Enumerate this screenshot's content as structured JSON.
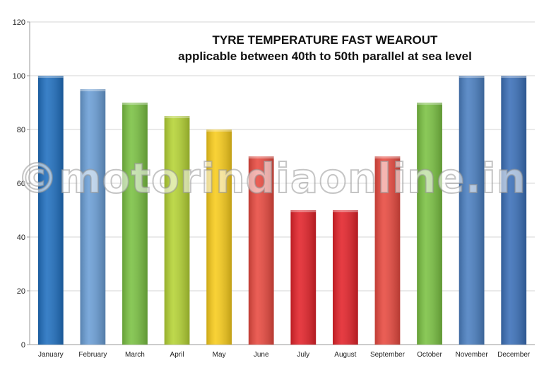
{
  "chart_data": {
    "type": "bar",
    "title": "TYRE TEMPERATURE FAST WEAROUT",
    "subtitle": "applicable between 40th to 50th parallel at sea level",
    "categories": [
      "January",
      "February",
      "March",
      "April",
      "May",
      "June",
      "July",
      "August",
      "September",
      "October",
      "November",
      "December"
    ],
    "values": [
      100,
      95,
      90,
      85,
      80,
      70,
      50,
      50,
      70,
      90,
      100,
      100
    ],
    "colors": [
      "#1f6fbf",
      "#6a9ed6",
      "#7ac142",
      "#b5d334",
      "#f8cc1b",
      "#e8493f",
      "#e32229",
      "#e32229",
      "#e8493f",
      "#7ac142",
      "#4a7fc1",
      "#3a6fb8"
    ],
    "ylim": [
      0,
      120
    ],
    "yticks": [
      0,
      20,
      40,
      60,
      80,
      100,
      120
    ],
    "grid": true,
    "legend": "none"
  },
  "watermark": "©motorindiaonline.in"
}
